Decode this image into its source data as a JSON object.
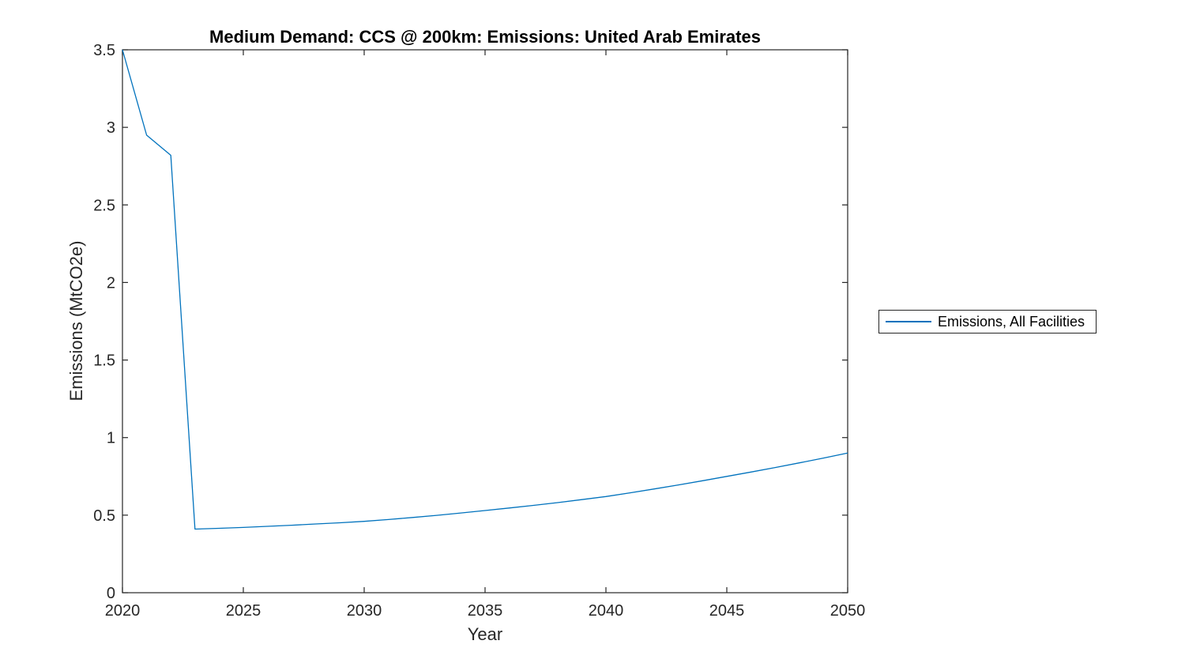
{
  "figure": {
    "background": "#ffffff"
  },
  "chart_data": {
    "type": "line",
    "title": "Medium Demand: CCS @ 200km: Emissions: United Arab Emirates",
    "xlabel": "Year",
    "ylabel": "Emissions (MtCO2e)",
    "xlim": [
      2020,
      2050
    ],
    "ylim": [
      0,
      3.5
    ],
    "xticks": [
      2020,
      2025,
      2030,
      2035,
      2040,
      2045,
      2050
    ],
    "yticks": [
      0,
      0.5,
      1,
      1.5,
      2,
      2.5,
      3,
      3.5
    ],
    "grid": false,
    "box": true,
    "axis_color": "#262626",
    "line_color": "#0072BD",
    "legend": {
      "position": "right-outside",
      "entries": [
        {
          "label": "Emissions, All Facilities",
          "color": "#0072BD"
        }
      ]
    },
    "series": [
      {
        "name": "Emissions, All Facilities",
        "color": "#0072BD",
        "x": [
          2020,
          2021,
          2022,
          2023,
          2024,
          2025,
          2026,
          2027,
          2028,
          2029,
          2030,
          2031,
          2032,
          2033,
          2034,
          2035,
          2036,
          2037,
          2038,
          2039,
          2040,
          2041,
          2042,
          2043,
          2044,
          2045,
          2046,
          2047,
          2048,
          2049,
          2050
        ],
        "y": [
          3.5,
          2.95,
          2.82,
          0.41,
          0.415,
          0.421,
          0.428,
          0.435,
          0.443,
          0.451,
          0.46,
          0.472,
          0.485,
          0.499,
          0.514,
          0.53,
          0.546,
          0.563,
          0.581,
          0.6,
          0.62,
          0.644,
          0.669,
          0.695,
          0.722,
          0.75,
          0.778,
          0.807,
          0.837,
          0.868,
          0.9
        ]
      }
    ]
  }
}
